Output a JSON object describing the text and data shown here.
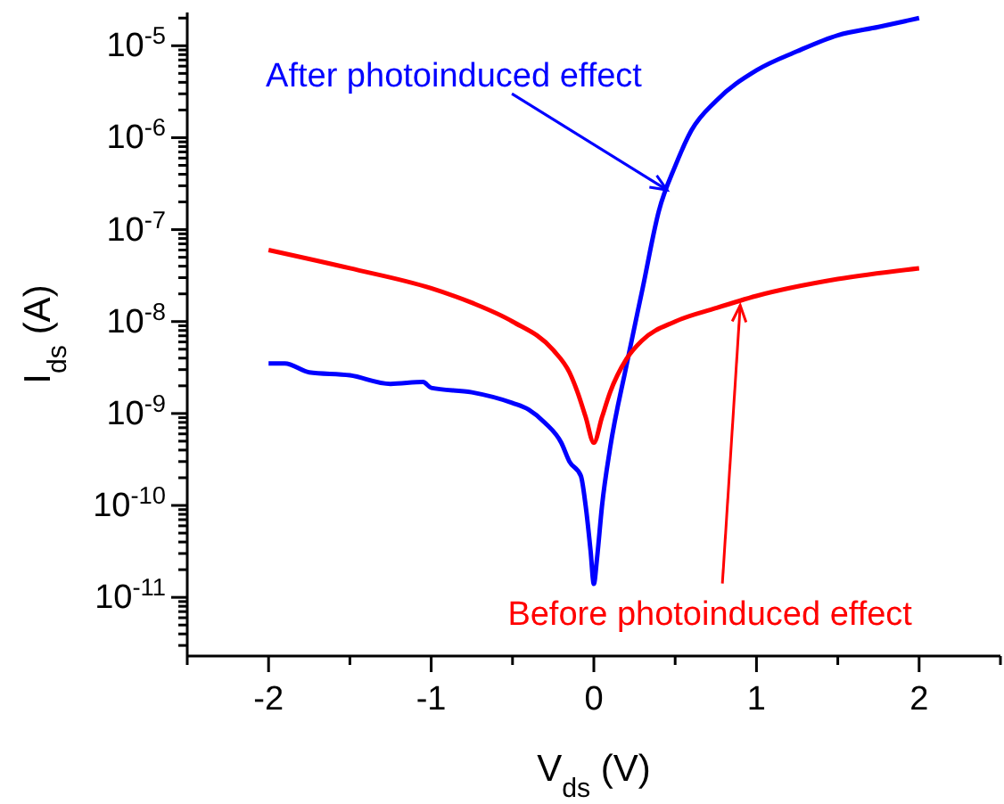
{
  "chart_data": {
    "type": "line",
    "xlabel": "V$_{ds}$ (V)",
    "ylabel": "I$_{ds}$ (A)",
    "log": "y",
    "legend": false,
    "marker": "none",
    "line_style": "solid",
    "xlim": [
      -2.5,
      2.5
    ],
    "xticks": [
      {
        "value": -2.5,
        "label": null
      },
      -2,
      {
        "value": -1.5,
        "label": null
      },
      -1,
      {
        "value": -0.5,
        "label": null
      },
      0,
      {
        "value": 0.5,
        "label": null
      },
      1,
      {
        "value": 1.5,
        "label": null
      },
      2,
      {
        "value": 2.5,
        "label": null
      }
    ],
    "ylim": [
      2.3e-12,
      2.3e-05
    ],
    "yticks": [
      {
        "value": 3e-12,
        "label": null
      },
      {
        "value": 4e-12,
        "label": null
      },
      {
        "value": 5e-12,
        "label": null
      },
      {
        "value": 6e-12,
        "label": null
      },
      {
        "value": 7e-12,
        "label": null
      },
      {
        "value": 8e-12,
        "label": null
      },
      {
        "value": 9e-12,
        "label": null
      },
      {
        "value": 1e-11,
        "label": "10$^{-11}$"
      },
      {
        "value": 2e-11,
        "label": null
      },
      {
        "value": 3e-11,
        "label": null
      },
      {
        "value": 4e-11,
        "label": null
      },
      {
        "value": 5e-11,
        "label": null
      },
      {
        "value": 6e-11,
        "label": null
      },
      {
        "value": 7e-11,
        "label": null
      },
      {
        "value": 8e-11,
        "label": null
      },
      {
        "value": 9e-11,
        "label": null
      },
      {
        "value": 1e-10,
        "label": "10$^{-10}$"
      },
      {
        "value": 2e-10,
        "label": null
      },
      {
        "value": 3e-10,
        "label": null
      },
      {
        "value": 4e-10,
        "label": null
      },
      {
        "value": 5e-10,
        "label": null
      },
      {
        "value": 6e-10,
        "label": null
      },
      {
        "value": 7e-10,
        "label": null
      },
      {
        "value": 8e-10,
        "label": null
      },
      {
        "value": 9e-10,
        "label": null
      },
      {
        "value": 1e-09,
        "label": "10$^{-9}$"
      },
      {
        "value": 2e-09,
        "label": null
      },
      {
        "value": 3e-09,
        "label": null
      },
      {
        "value": 4e-09,
        "label": null
      },
      {
        "value": 5e-09,
        "label": null
      },
      {
        "value": 6e-09,
        "label": null
      },
      {
        "value": 7e-09,
        "label": null
      },
      {
        "value": 8e-09,
        "label": null
      },
      {
        "value": 9e-09,
        "label": null
      },
      {
        "value": 1e-08,
        "label": "10$^{-8}$"
      },
      {
        "value": 2e-08,
        "label": null
      },
      {
        "value": 3e-08,
        "label": null
      },
      {
        "value": 4e-08,
        "label": null
      },
      {
        "value": 5e-08,
        "label": null
      },
      {
        "value": 6e-08,
        "label": null
      },
      {
        "value": 7e-08,
        "label": null
      },
      {
        "value": 8e-08,
        "label": null
      },
      {
        "value": 9e-08,
        "label": null
      },
      {
        "value": 1e-07,
        "label": "10$^{-7}$"
      },
      {
        "value": 2e-07,
        "label": null
      },
      {
        "value": 3e-07,
        "label": null
      },
      {
        "value": 4e-07,
        "label": null
      },
      {
        "value": 5e-07,
        "label": null
      },
      {
        "value": 6e-07,
        "label": null
      },
      {
        "value": 7e-07,
        "label": null
      },
      {
        "value": 8e-07,
        "label": null
      },
      {
        "value": 9e-07,
        "label": null
      },
      {
        "value": 1e-06,
        "label": "10$^{-6}$"
      },
      {
        "value": 2e-06,
        "label": null
      },
      {
        "value": 3e-06,
        "label": null
      },
      {
        "value": 4e-06,
        "label": null
      },
      {
        "value": 5e-06,
        "label": null
      },
      {
        "value": 6e-06,
        "label": null
      },
      {
        "value": 7e-06,
        "label": null
      },
      {
        "value": 8e-06,
        "label": null
      },
      {
        "value": 9e-06,
        "label": null
      },
      {
        "value": 1e-05,
        "label": "10$^{-5}$"
      },
      {
        "value": 2e-05,
        "label": null
      }
    ],
    "annotations": [
      {
        "text": "After photoinduced effect",
        "x": 0.45,
        "y": 2.7e-07
      },
      {
        "text": "Before photoinduced effect",
        "x": 0.9,
        "y": 1.5e-08
      }
    ],
    "series": [
      {
        "color": "#0000ff",
        "x": [
          -2,
          -1.9,
          -1.75,
          -1.5,
          -1.25,
          -1.05,
          -1,
          -0.75,
          -0.5,
          -0.4,
          -0.3,
          -0.2,
          -0.15,
          -0.08,
          -0.05,
          -0.02,
          0,
          0.02,
          0.05,
          0.1,
          0.2,
          0.3,
          0.4,
          0.5,
          0.6,
          0.75,
          1,
          1.25,
          1.5,
          1.75,
          2
        ],
        "values": [
          3.5e-09,
          3.5e-09,
          2.8e-09,
          2.6e-09,
          2.1e-09,
          2.2e-09,
          1.9e-09,
          1.7e-09,
          1.3e-09,
          1.1e-09,
          7.9e-10,
          4.8e-10,
          3e-10,
          2.1e-10,
          9.8e-11,
          3.2e-11,
          1.4e-11,
          2.7e-11,
          9.8e-11,
          4.2e-10,
          3.3e-09,
          2.3e-08,
          1.6e-07,
          4.9e-07,
          1.2e-06,
          2.5e-06,
          5.4e-06,
          8.7e-06,
          1.3e-05,
          1.6e-05,
          2e-05
        ]
      },
      {
        "color": "#ff0000",
        "x": [
          -2,
          -1.5,
          -1,
          -0.75,
          -0.5,
          -0.25,
          -0.15,
          -0.1,
          -0.05,
          0,
          0.05,
          0.1,
          0.2,
          0.3,
          0.5,
          0.75,
          1,
          1.5,
          2
        ],
        "values": [
          6e-08,
          3.8e-08,
          2.3e-08,
          1.6e-08,
          1e-08,
          4.9e-09,
          2.8e-09,
          1.7e-09,
          9.1e-10,
          4.8e-10,
          9.1e-10,
          1.7e-09,
          3.9e-09,
          6.3e-09,
          1e-08,
          1.4e-08,
          1.9e-08,
          2.9e-08,
          3.8e-08
        ]
      }
    ]
  }
}
